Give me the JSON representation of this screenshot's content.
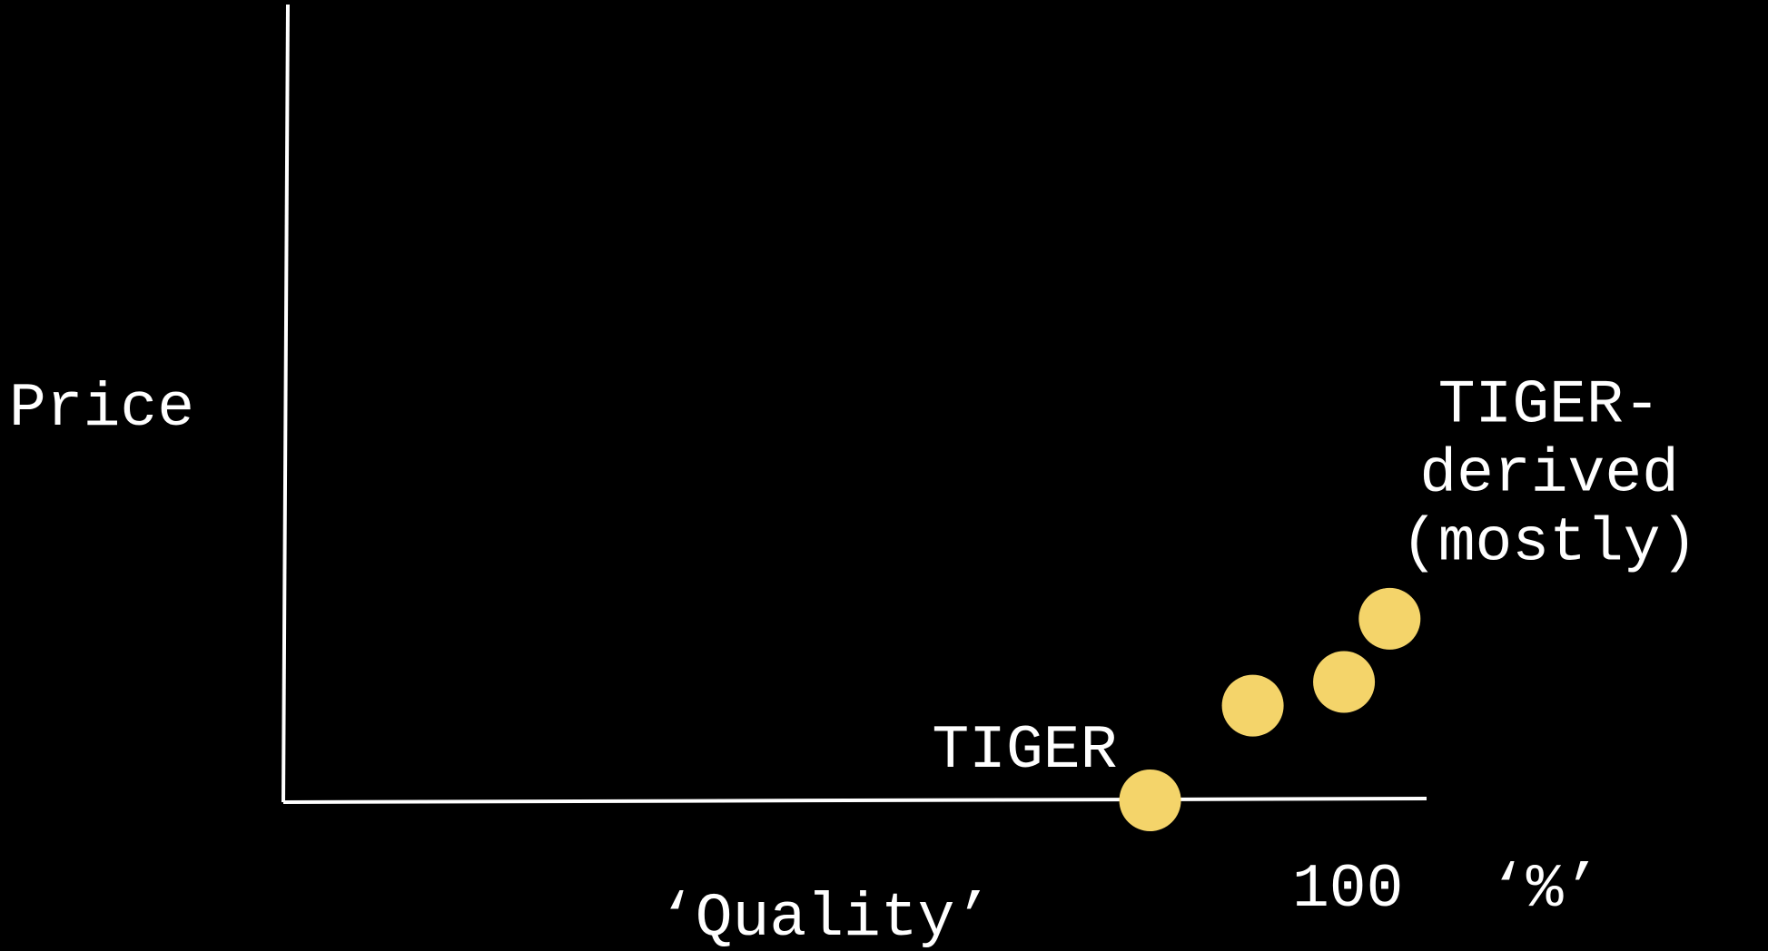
{
  "chart_data": {
    "type": "scatter",
    "title": "",
    "xlabel": "‘Quality’",
    "ylabel": "Price",
    "x_tick_labels": [
      {
        "value": 100,
        "label": "100"
      }
    ],
    "x_unit_label": "‘%’",
    "xlim": [
      0,
      100
    ],
    "ylim": [
      0,
      100
    ],
    "grid": false,
    "legend": "none",
    "point_color": "#f4d46a",
    "axis_color": "#ffffff",
    "background_color": "#000000",
    "points": [
      {
        "x": 76,
        "y": 0
      },
      {
        "x": 85,
        "y": 12
      },
      {
        "x": 93,
        "y": 15
      },
      {
        "x": 97,
        "y": 23
      }
    ],
    "annotations": [
      {
        "lines": [
          "TIGER"
        ],
        "x": 65,
        "y": 7
      },
      {
        "lines": [
          "TIGER-",
          "derived",
          "(mostly)"
        ],
        "x": 111,
        "y": 42
      }
    ]
  }
}
